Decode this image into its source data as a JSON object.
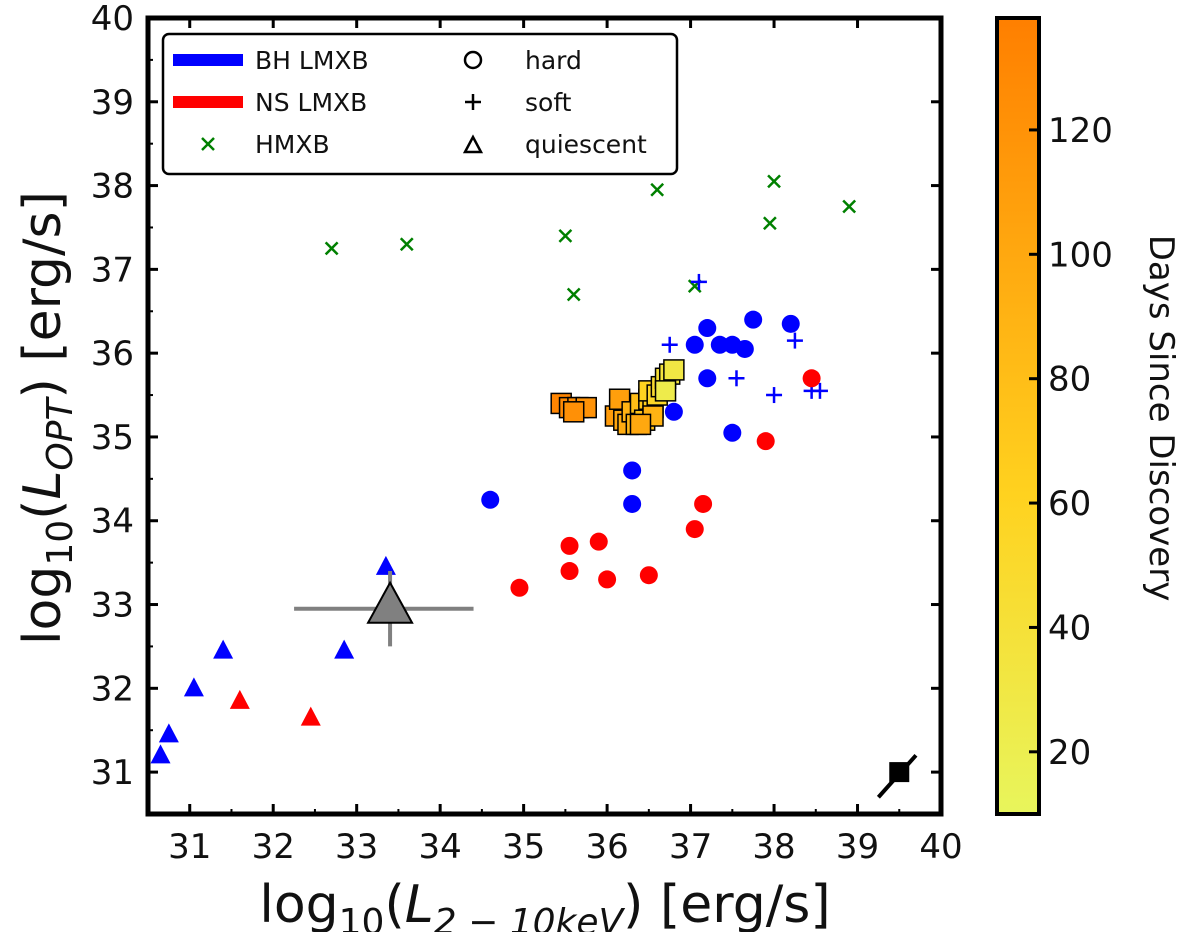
{
  "chart_data": {
    "type": "scatter",
    "xlabel_parts": [
      "log",
      "10",
      "(",
      "L",
      "2 − 10keV",
      ") [erg/s]"
    ],
    "ylabel_parts": [
      "log",
      "10",
      "(",
      "L",
      "OPT",
      ") [erg/s]"
    ],
    "xlim": [
      30.5,
      40
    ],
    "ylim": [
      30.5,
      40
    ],
    "xticks": [
      31,
      32,
      33,
      34,
      35,
      36,
      37,
      38,
      39,
      40
    ],
    "yticks": [
      31,
      32,
      33,
      34,
      35,
      36,
      37,
      38,
      39,
      40
    ],
    "colors": {
      "bh": "#0000ff",
      "ns": "#ff0000",
      "hmxb": "#008000",
      "target": "#808080",
      "cmap_low": "#e8f55c",
      "cmap_mid": "#ffd21f",
      "cmap_high": "#ff7f00"
    },
    "legend": {
      "position": "upper-left",
      "entries": [
        {
          "label": "BH LMXB",
          "kind": "line",
          "color": "#0000ff"
        },
        {
          "label": "NS LMXB",
          "kind": "line",
          "color": "#ff0000"
        },
        {
          "label": "HMXB",
          "kind": "x",
          "color": "#008000"
        },
        {
          "label": "hard",
          "kind": "circle",
          "color": "#000000"
        },
        {
          "label": "soft",
          "kind": "plus",
          "color": "#000000"
        },
        {
          "label": "quiescent",
          "kind": "triangle",
          "color": "#000000"
        }
      ]
    },
    "colorbar": {
      "label": "Days Since Discovery",
      "range": [
        10,
        138
      ],
      "ticks": [
        20,
        40,
        60,
        80,
        100,
        120
      ]
    },
    "series": [
      {
        "class": "HMXB",
        "marker": "x",
        "points": [
          [
            32.7,
            37.25
          ],
          [
            33.6,
            37.3
          ],
          [
            35.5,
            37.4
          ],
          [
            35.6,
            36.7
          ],
          [
            36.6,
            37.95
          ],
          [
            37.05,
            36.8
          ],
          [
            38.0,
            38.05
          ],
          [
            37.95,
            37.55
          ],
          [
            38.9,
            37.75
          ]
        ]
      },
      {
        "class": "BH LMXB",
        "state": "hard",
        "marker": "circle",
        "points": [
          [
            34.6,
            34.25
          ],
          [
            36.25,
            35.35
          ],
          [
            36.3,
            34.6
          ],
          [
            36.3,
            34.2
          ],
          [
            36.8,
            35.3
          ],
          [
            37.05,
            36.1
          ],
          [
            37.2,
            36.3
          ],
          [
            37.2,
            35.7
          ],
          [
            37.35,
            36.1
          ],
          [
            37.5,
            36.1
          ],
          [
            37.65,
            36.05
          ],
          [
            37.75,
            36.4
          ],
          [
            37.5,
            35.05
          ],
          [
            38.2,
            36.35
          ]
        ]
      },
      {
        "class": "BH LMXB",
        "state": "soft",
        "marker": "plus",
        "points": [
          [
            37.1,
            36.85
          ],
          [
            36.75,
            36.1
          ],
          [
            37.55,
            35.7
          ],
          [
            38.0,
            35.5
          ],
          [
            38.25,
            36.15
          ],
          [
            38.45,
            35.55
          ],
          [
            38.55,
            35.55
          ]
        ]
      },
      {
        "class": "NS LMXB",
        "state": "hard",
        "marker": "circle",
        "points": [
          [
            34.95,
            33.2
          ],
          [
            35.55,
            33.7
          ],
          [
            35.55,
            33.4
          ],
          [
            35.9,
            33.75
          ],
          [
            36.0,
            33.3
          ],
          [
            36.5,
            33.35
          ],
          [
            37.05,
            33.9
          ],
          [
            37.15,
            34.2
          ],
          [
            37.9,
            34.95
          ],
          [
            38.45,
            35.7
          ]
        ]
      },
      {
        "class": "BH LMXB",
        "state": "quiescent",
        "marker": "triangle",
        "points": [
          [
            30.65,
            31.2
          ],
          [
            30.75,
            31.45
          ],
          [
            31.05,
            32.0
          ],
          [
            31.4,
            32.45
          ],
          [
            32.85,
            32.45
          ],
          [
            33.35,
            33.45
          ]
        ]
      },
      {
        "class": "NS LMXB",
        "state": "quiescent",
        "marker": "triangle",
        "points": [
          [
            31.6,
            31.85
          ],
          [
            32.45,
            31.65
          ]
        ]
      },
      {
        "class": "target",
        "marker": "triangle-large",
        "points": [
          [
            33.4,
            32.95
          ]
        ],
        "xerr": [
          1.15,
          1.0
        ],
        "yerr": [
          0.45,
          0.45
        ]
      },
      {
        "class": "monitoring",
        "marker": "square",
        "note_color": "days since discovery",
        "points": [
          [
            35.45,
            35.4,
            132
          ],
          [
            35.55,
            35.35,
            128
          ],
          [
            35.65,
            35.35,
            125
          ],
          [
            35.75,
            35.35,
            120
          ],
          [
            35.6,
            35.3,
            122
          ],
          [
            36.1,
            35.25,
            112
          ],
          [
            36.15,
            35.45,
            108
          ],
          [
            36.2,
            35.2,
            102
          ],
          [
            36.25,
            35.15,
            96
          ],
          [
            36.3,
            35.3,
            90
          ],
          [
            36.35,
            35.15,
            86
          ],
          [
            36.4,
            35.4,
            80
          ],
          [
            36.45,
            35.2,
            76
          ],
          [
            36.5,
            35.45,
            70
          ],
          [
            36.55,
            35.35,
            64
          ],
          [
            36.5,
            35.55,
            60
          ],
          [
            36.6,
            35.5,
            54
          ],
          [
            36.65,
            35.6,
            48
          ],
          [
            36.7,
            35.7,
            42
          ],
          [
            36.75,
            35.75,
            36
          ],
          [
            36.8,
            35.8,
            30
          ],
          [
            36.7,
            35.55,
            24
          ],
          [
            36.55,
            35.25,
            90
          ],
          [
            36.4,
            35.15,
            100
          ]
        ]
      },
      {
        "class": "reference",
        "marker": "square-black",
        "points": [
          [
            39.5,
            31.0
          ]
        ],
        "slope_segment": [
          [
            39.25,
            30.7
          ],
          [
            39.7,
            31.2
          ]
        ]
      }
    ]
  }
}
